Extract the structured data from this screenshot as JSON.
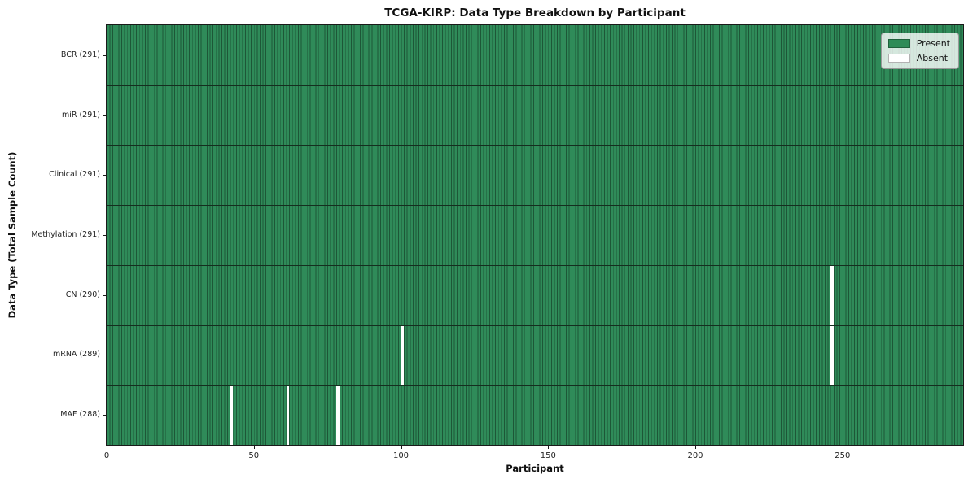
{
  "chart_data": {
    "type": "heatmap",
    "title": "TCGA-KIRP: Data Type Breakdown by Participant",
    "xlabel": "Participant",
    "ylabel": "Data Type (Total Sample Count)",
    "n_participants": 291,
    "xlim": [
      0,
      291
    ],
    "x_ticks": [
      0,
      50,
      100,
      150,
      200,
      250
    ],
    "rows": [
      {
        "label": "BCR (291)",
        "present_count": 291,
        "absent_participants": []
      },
      {
        "label": "miR (291)",
        "present_count": 291,
        "absent_participants": []
      },
      {
        "label": "Clinical (291)",
        "present_count": 291,
        "absent_participants": []
      },
      {
        "label": "Methylation (291)",
        "present_count": 291,
        "absent_participants": []
      },
      {
        "label": "CN (290)",
        "present_count": 290,
        "absent_participants": [
          246
        ]
      },
      {
        "label": "mRNA (289)",
        "present_count": 289,
        "absent_participants": [
          100,
          246
        ]
      },
      {
        "label": "MAF (288)",
        "present_count": 288,
        "absent_participants": [
          42,
          61,
          78
        ]
      }
    ],
    "legend": [
      {
        "label": "Present",
        "color": "#2e8b57"
      },
      {
        "label": "Absent",
        "color": "#ffffff"
      }
    ],
    "legend_position": "upper right",
    "grid": false,
    "colors": {
      "present": "#2f8b59",
      "absent": "#ffffff",
      "bar_edge": "#1d5737",
      "row_separator": "#152e1f",
      "spine": "#1a1a1a",
      "background": "#ffffff"
    }
  }
}
